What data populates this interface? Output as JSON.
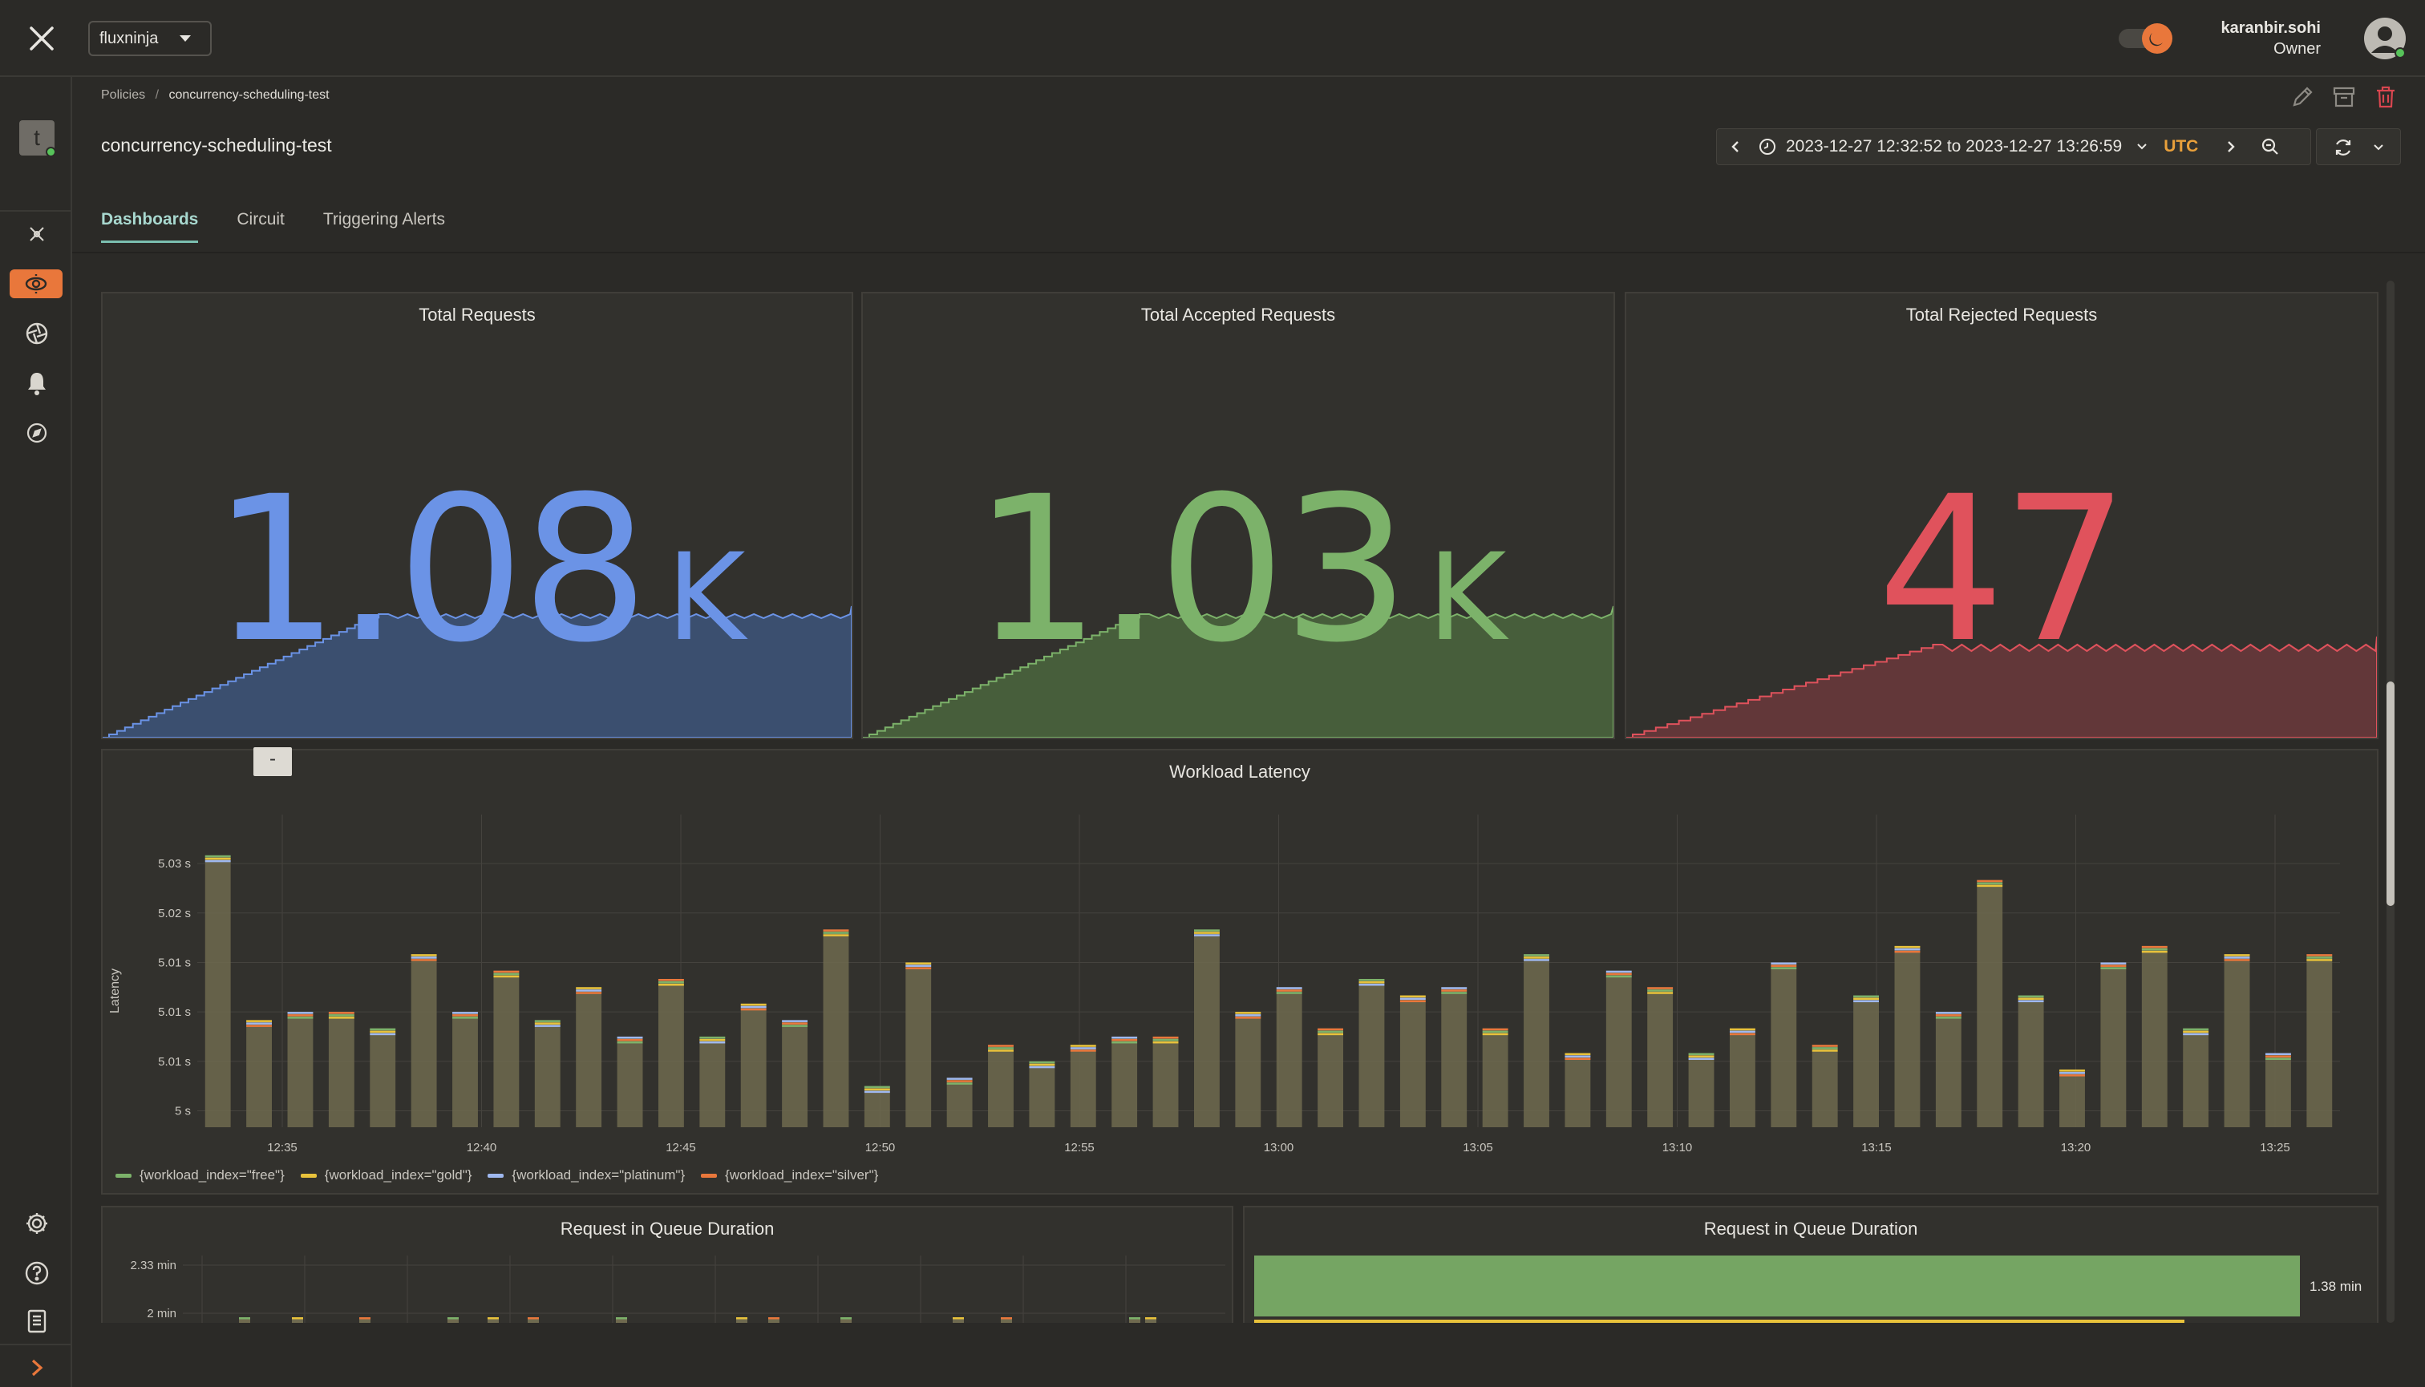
{
  "topbar": {
    "org": "fluxninja",
    "user_name": "karanbir.sohi",
    "user_role": "Owner"
  },
  "breadcrumb": {
    "root": "Policies",
    "separator": "/",
    "current": "concurrency-scheduling-test"
  },
  "page_title": "concurrency-scheduling-test",
  "time_range": {
    "text": "2023-12-27 12:32:52 to 2023-12-27 13:26:59",
    "timezone": "UTC"
  },
  "tabs": [
    {
      "label": "Dashboards"
    },
    {
      "label": "Circuit"
    },
    {
      "label": "Triggering Alerts"
    }
  ],
  "stats": [
    {
      "title": "Total Requests",
      "value": "1.08",
      "unit": "K",
      "color": "#6b93e6"
    },
    {
      "title": "Total Accepted Requests",
      "value": "1.03",
      "unit": "K",
      "color": "#7cb26a"
    },
    {
      "title": "Total Rejected Requests",
      "value": "47",
      "unit": "",
      "color": "#e0525c"
    }
  ],
  "latency_panel": {
    "title": "Workload Latency",
    "collapse_label": "-"
  },
  "queue_panels": [
    {
      "title": "Request in Queue Duration"
    },
    {
      "title": "Request in Queue Duration"
    }
  ],
  "colors": {
    "accent": "#e9773b",
    "free": "#7cb26a",
    "gold": "#e8c23b",
    "platinum": "#9fb8ef",
    "silver": "#e9773b"
  },
  "chart_data": [
    {
      "type": "bar",
      "title": "Workload Latency",
      "ylabel": "Latency",
      "y_tick_labels": [
        "5 s",
        "5.01 s",
        "5.01 s",
        "5.01 s",
        "5.02 s",
        "5.03 s"
      ],
      "x_tick_labels": [
        "12:35",
        "12:40",
        "12:45",
        "12:50",
        "12:55",
        "13:00",
        "13:05",
        "13:10",
        "13:15",
        "13:20",
        "13:25"
      ],
      "ylim": [
        4.998,
        5.034
      ],
      "legend": "bottom-left",
      "series": [
        {
          "name": "{workload_index=\"free\"}",
          "color": "#7cb26a"
        },
        {
          "name": "{workload_index=\"gold\"}",
          "color": "#e8c23b"
        },
        {
          "name": "{workload_index=\"platinum\"}",
          "color": "#9fb8ef"
        },
        {
          "name": "{workload_index=\"silver\"}",
          "color": "#e9773b"
        }
      ],
      "values": [
        5.031,
        5.011,
        5.012,
        5.012,
        5.01,
        5.019,
        5.012,
        5.017,
        5.011,
        5.015,
        5.009,
        5.016,
        5.009,
        5.013,
        5.011,
        5.022,
        5.003,
        5.018,
        5.004,
        5.008,
        5.006,
        5.008,
        5.009,
        5.009,
        5.022,
        5.012,
        5.015,
        5.01,
        5.016,
        5.014,
        5.015,
        5.01,
        5.019,
        5.007,
        5.017,
        5.015,
        5.007,
        5.01,
        5.018,
        5.008,
        5.014,
        5.02,
        5.012,
        5.028,
        5.014,
        5.005,
        5.018,
        5.02,
        5.01,
        5.019,
        5.007,
        5.019
      ]
    },
    {
      "type": "line",
      "title": "Request in Queue Duration",
      "y_tick_labels": [
        "2.33 min",
        "2 min"
      ]
    },
    {
      "type": "bar",
      "title": "Request in Queue Duration",
      "value_label": "1.38 min",
      "values": [
        1.38
      ]
    }
  ]
}
